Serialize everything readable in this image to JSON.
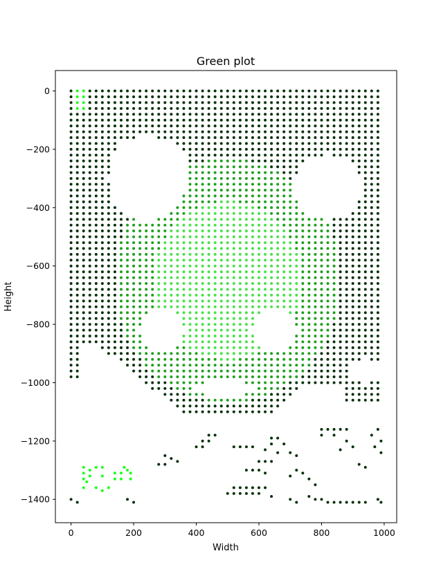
{
  "chart_data": {
    "type": "scatter",
    "title": "Green plot",
    "xlabel": "Width",
    "ylabel": "Height",
    "xlim": [
      -50,
      1040
    ],
    "ylim": [
      -1480,
      70
    ],
    "xticks": [
      0,
      200,
      400,
      600,
      800,
      1000
    ],
    "yticks": [
      0,
      -200,
      -400,
      -600,
      -800,
      -1000,
      -1200,
      -1400
    ],
    "grid": false,
    "legend": "none",
    "grid_step": 20,
    "colors": {
      "outer_dark": "#06300a",
      "inner_mid": "#1fa01f",
      "inner_light": "#4be14b",
      "bright": "#1bff1b"
    },
    "points_description": "Dense rectangular lattice of dots with 20-unit spacing spanning x 0–990 and y 0 to -1410; dark-green border region, bright-green interior disc centred near (500,-650); white holes at two upper cavities, two middle cavities and a lower oval; sparse scattered points along the lower edge.",
    "regions": {
      "main_grid": {
        "x": [
          0,
          990
        ],
        "y": [
          -1000,
          0
        ]
      },
      "bright_corner_top_left": {
        "x": [
          20,
          50
        ],
        "y": [
          -70,
          0
        ]
      },
      "bright_cluster_bottom_left": {
        "x": [
          40,
          200
        ],
        "y": [
          -1370,
          -1290
        ]
      }
    }
  }
}
